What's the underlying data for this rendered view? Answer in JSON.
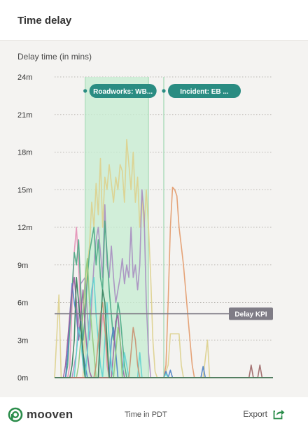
{
  "header": {
    "title": "Time delay"
  },
  "chart_data": {
    "type": "line",
    "ylabel": "Delay time (in mins)",
    "xlabel": "Time in PDT",
    "ylim": [
      0,
      24
    ],
    "yticks": [
      {
        "value": 0,
        "label": "0m"
      },
      {
        "value": 3,
        "label": "3m"
      },
      {
        "value": 6,
        "label": "6m"
      },
      {
        "value": 9,
        "label": "9m"
      },
      {
        "value": 12,
        "label": "12m"
      },
      {
        "value": 15,
        "label": "15m"
      },
      {
        "value": 18,
        "label": "18m"
      },
      {
        "value": 21,
        "label": "21m"
      },
      {
        "value": 24,
        "label": "24m"
      }
    ],
    "grid": "horizontal dotted",
    "kpi": {
      "label": "Delay KPI",
      "value": 5.1,
      "color": "#7f7c86"
    },
    "events": [
      {
        "label": "Roadworks: WB...",
        "x_start": 0.14,
        "x_end": 0.43,
        "color": "#2a8c82",
        "fill": "#c6ecd0"
      },
      {
        "label": "Incident: EB ...",
        "x_start": 0.5,
        "color": "#2a8c82"
      }
    ],
    "series": [
      {
        "color": "#ddd08c",
        "points": [
          [
            0,
            0
          ],
          [
            0.02,
            6.6
          ],
          [
            0.03,
            0
          ],
          [
            0.13,
            0
          ],
          [
            0.14,
            6
          ],
          [
            0.15,
            9
          ],
          [
            0.16,
            10.5
          ],
          [
            0.17,
            14
          ],
          [
            0.18,
            12
          ],
          [
            0.19,
            15.5
          ],
          [
            0.2,
            13
          ],
          [
            0.21,
            17.5
          ],
          [
            0.22,
            12
          ],
          [
            0.23,
            16
          ],
          [
            0.24,
            15
          ],
          [
            0.25,
            17
          ],
          [
            0.26,
            15.5
          ],
          [
            0.27,
            14
          ],
          [
            0.28,
            16
          ],
          [
            0.29,
            15
          ],
          [
            0.3,
            17
          ],
          [
            0.31,
            16.5
          ],
          [
            0.32,
            14
          ],
          [
            0.33,
            19
          ],
          [
            0.34,
            17
          ],
          [
            0.35,
            15
          ],
          [
            0.36,
            18
          ],
          [
            0.37,
            14
          ],
          [
            0.38,
            16
          ],
          [
            0.39,
            12
          ],
          [
            0.4,
            14.5
          ],
          [
            0.41,
            12
          ],
          [
            0.42,
            15
          ],
          [
            0.43,
            12
          ],
          [
            0.44,
            8
          ],
          [
            0.45,
            3
          ],
          [
            0.46,
            0.5
          ],
          [
            0.47,
            0
          ],
          [
            0.5,
            0
          ],
          [
            0.52,
            1
          ],
          [
            0.53,
            3.5
          ],
          [
            0.55,
            3.5
          ],
          [
            0.57,
            3.5
          ],
          [
            0.58,
            1
          ],
          [
            0.59,
            0
          ],
          [
            0.68,
            0
          ],
          [
            0.7,
            3
          ],
          [
            0.71,
            0
          ],
          [
            1,
            0
          ]
        ]
      },
      {
        "color": "#e39a6a",
        "points": [
          [
            0,
            0
          ],
          [
            0.5,
            0
          ],
          [
            0.51,
            1
          ],
          [
            0.52,
            6
          ],
          [
            0.53,
            12
          ],
          [
            0.54,
            15.2
          ],
          [
            0.55,
            15
          ],
          [
            0.56,
            14.5
          ],
          [
            0.57,
            12
          ],
          [
            0.58,
            10.5
          ],
          [
            0.59,
            9
          ],
          [
            0.6,
            7
          ],
          [
            0.61,
            5
          ],
          [
            0.62,
            3
          ],
          [
            0.63,
            1
          ],
          [
            0.64,
            0
          ],
          [
            1,
            0
          ]
        ]
      },
      {
        "color": "#a78dc0",
        "points": [
          [
            0,
            0
          ],
          [
            0.08,
            0
          ],
          [
            0.1,
            2
          ],
          [
            0.12,
            7.5
          ],
          [
            0.14,
            8
          ],
          [
            0.15,
            5
          ],
          [
            0.16,
            3
          ],
          [
            0.17,
            6
          ],
          [
            0.18,
            9
          ],
          [
            0.19,
            11
          ],
          [
            0.2,
            12
          ],
          [
            0.21,
            10
          ],
          [
            0.22,
            8
          ],
          [
            0.23,
            13.8
          ],
          [
            0.24,
            9
          ],
          [
            0.25,
            8
          ],
          [
            0.26,
            10.5
          ],
          [
            0.27,
            8
          ],
          [
            0.28,
            6
          ],
          [
            0.29,
            7
          ],
          [
            0.3,
            8
          ],
          [
            0.31,
            9.5
          ],
          [
            0.32,
            7.5
          ],
          [
            0.33,
            9
          ],
          [
            0.34,
            8
          ],
          [
            0.35,
            12
          ],
          [
            0.36,
            8
          ],
          [
            0.37,
            9
          ],
          [
            0.38,
            7
          ],
          [
            0.39,
            9
          ],
          [
            0.4,
            15
          ],
          [
            0.41,
            13
          ],
          [
            0.42,
            6
          ],
          [
            0.43,
            2
          ],
          [
            0.44,
            0
          ],
          [
            1,
            0
          ]
        ]
      },
      {
        "color": "#e48fb5",
        "points": [
          [
            0,
            0
          ],
          [
            0.06,
            0
          ],
          [
            0.07,
            1
          ],
          [
            0.08,
            6
          ],
          [
            0.09,
            10
          ],
          [
            0.1,
            12
          ],
          [
            0.11,
            9
          ],
          [
            0.12,
            5
          ],
          [
            0.13,
            1
          ],
          [
            0.14,
            0
          ],
          [
            0.2,
            0
          ],
          [
            0.21,
            3
          ],
          [
            0.22,
            5
          ],
          [
            0.23,
            4
          ],
          [
            0.24,
            1
          ],
          [
            0.25,
            0
          ],
          [
            1,
            0
          ]
        ]
      },
      {
        "color": "#4aa884",
        "points": [
          [
            0,
            0
          ],
          [
            0.05,
            0
          ],
          [
            0.06,
            1
          ],
          [
            0.07,
            4
          ],
          [
            0.08,
            7
          ],
          [
            0.09,
            10
          ],
          [
            0.1,
            9
          ],
          [
            0.11,
            11
          ],
          [
            0.12,
            7
          ],
          [
            0.13,
            3
          ],
          [
            0.14,
            5
          ],
          [
            0.15,
            8
          ],
          [
            0.16,
            10
          ],
          [
            0.17,
            11
          ],
          [
            0.18,
            12
          ],
          [
            0.19,
            9
          ],
          [
            0.2,
            11
          ],
          [
            0.21,
            8
          ],
          [
            0.22,
            7
          ],
          [
            0.23,
            12.5
          ],
          [
            0.24,
            10
          ],
          [
            0.25,
            7
          ],
          [
            0.26,
            5
          ],
          [
            0.27,
            3
          ],
          [
            0.28,
            4
          ],
          [
            0.29,
            6
          ],
          [
            0.3,
            5
          ],
          [
            0.31,
            3
          ],
          [
            0.32,
            1
          ],
          [
            0.33,
            0
          ],
          [
            1,
            0
          ]
        ]
      },
      {
        "color": "#4a7fc4",
        "points": [
          [
            0,
            0
          ],
          [
            0.05,
            0
          ],
          [
            0.06,
            2
          ],
          [
            0.07,
            5
          ],
          [
            0.08,
            7.5
          ],
          [
            0.09,
            6
          ],
          [
            0.1,
            5
          ],
          [
            0.11,
            3
          ],
          [
            0.12,
            4.5
          ],
          [
            0.13,
            2
          ],
          [
            0.14,
            1
          ],
          [
            0.15,
            0
          ],
          [
            0.25,
            0
          ],
          [
            0.26,
            3
          ],
          [
            0.27,
            4
          ],
          [
            0.28,
            2
          ],
          [
            0.29,
            0
          ],
          [
            0.5,
            0
          ],
          [
            0.51,
            0.5
          ],
          [
            0.52,
            0
          ],
          [
            0.53,
            0.6
          ],
          [
            0.54,
            0
          ],
          [
            0.67,
            0
          ],
          [
            0.68,
            0.9
          ],
          [
            0.69,
            0
          ],
          [
            1,
            0
          ]
        ]
      },
      {
        "color": "#9a5e9e",
        "points": [
          [
            0,
            0
          ],
          [
            0.04,
            0
          ],
          [
            0.05,
            1
          ],
          [
            0.06,
            3
          ],
          [
            0.07,
            5
          ],
          [
            0.08,
            7
          ],
          [
            0.09,
            8
          ],
          [
            0.1,
            6
          ],
          [
            0.11,
            3
          ],
          [
            0.12,
            5
          ],
          [
            0.13,
            7
          ],
          [
            0.14,
            4
          ],
          [
            0.15,
            2
          ],
          [
            0.16,
            0.5
          ],
          [
            0.17,
            0
          ],
          [
            0.26,
            0
          ],
          [
            0.27,
            2
          ],
          [
            0.28,
            4.5
          ],
          [
            0.29,
            5
          ],
          [
            0.3,
            3
          ],
          [
            0.31,
            1
          ],
          [
            0.32,
            0
          ],
          [
            1,
            0
          ]
        ]
      },
      {
        "color": "#5fd1cf",
        "points": [
          [
            0,
            0
          ],
          [
            0.09,
            0
          ],
          [
            0.1,
            2
          ],
          [
            0.11,
            4
          ],
          [
            0.12,
            3
          ],
          [
            0.13,
            1
          ],
          [
            0.14,
            0
          ],
          [
            0.15,
            2
          ],
          [
            0.16,
            5
          ],
          [
            0.17,
            7
          ],
          [
            0.18,
            8
          ],
          [
            0.19,
            5
          ],
          [
            0.2,
            3
          ],
          [
            0.21,
            1
          ],
          [
            0.22,
            0
          ],
          [
            0.23,
            3
          ],
          [
            0.24,
            6
          ],
          [
            0.25,
            3
          ],
          [
            0.26,
            1
          ],
          [
            0.27,
            0
          ],
          [
            0.31,
            0
          ],
          [
            0.32,
            2
          ],
          [
            0.33,
            1
          ],
          [
            0.34,
            0
          ],
          [
            0.38,
            0
          ],
          [
            0.39,
            2
          ],
          [
            0.4,
            0
          ],
          [
            0.5,
            0
          ],
          [
            0.51,
            0.3
          ],
          [
            0.52,
            0
          ],
          [
            1,
            0
          ]
        ]
      },
      {
        "color": "#94c87a",
        "points": [
          [
            0,
            0
          ],
          [
            0.1,
            0
          ],
          [
            0.11,
            1
          ],
          [
            0.12,
            3
          ],
          [
            0.13,
            5
          ],
          [
            0.14,
            8
          ],
          [
            0.15,
            9.5
          ],
          [
            0.16,
            6
          ],
          [
            0.17,
            4
          ],
          [
            0.18,
            2
          ],
          [
            0.19,
            0
          ],
          [
            0.27,
            0
          ],
          [
            0.28,
            2
          ],
          [
            0.29,
            4
          ],
          [
            0.3,
            3
          ],
          [
            0.31,
            0
          ],
          [
            1,
            0
          ]
        ]
      },
      {
        "color": "#c98e6e",
        "points": [
          [
            0,
            0
          ],
          [
            0.18,
            0
          ],
          [
            0.19,
            1
          ],
          [
            0.2,
            3
          ],
          [
            0.21,
            5
          ],
          [
            0.22,
            6
          ],
          [
            0.23,
            4
          ],
          [
            0.24,
            2
          ],
          [
            0.25,
            0
          ],
          [
            0.34,
            0
          ],
          [
            0.35,
            2
          ],
          [
            0.36,
            4
          ],
          [
            0.37,
            3
          ],
          [
            0.38,
            1
          ],
          [
            0.39,
            0
          ],
          [
            1,
            0
          ]
        ]
      },
      {
        "color": "#9b6464",
        "points": [
          [
            0,
            0
          ],
          [
            0.89,
            0
          ],
          [
            0.9,
            1
          ],
          [
            0.91,
            0
          ],
          [
            0.93,
            0
          ],
          [
            0.94,
            1
          ],
          [
            0.95,
            0
          ],
          [
            1,
            0
          ]
        ]
      },
      {
        "color": "#2f7d59",
        "points": [
          [
            0,
            0
          ],
          [
            0.07,
            0
          ],
          [
            0.08,
            1
          ],
          [
            0.09,
            3
          ],
          [
            0.1,
            8
          ],
          [
            0.11,
            6
          ],
          [
            0.12,
            4
          ],
          [
            0.13,
            2
          ],
          [
            0.14,
            0
          ],
          [
            0.2,
            0
          ],
          [
            0.21,
            4
          ],
          [
            0.22,
            7
          ],
          [
            0.23,
            6
          ],
          [
            0.24,
            3
          ],
          [
            0.25,
            0
          ],
          [
            1,
            0
          ]
        ]
      }
    ]
  },
  "footer": {
    "brand": "mooven",
    "x_title": "Time in PDT",
    "export_label": "Export",
    "brand_color": "#2a8c4a"
  }
}
